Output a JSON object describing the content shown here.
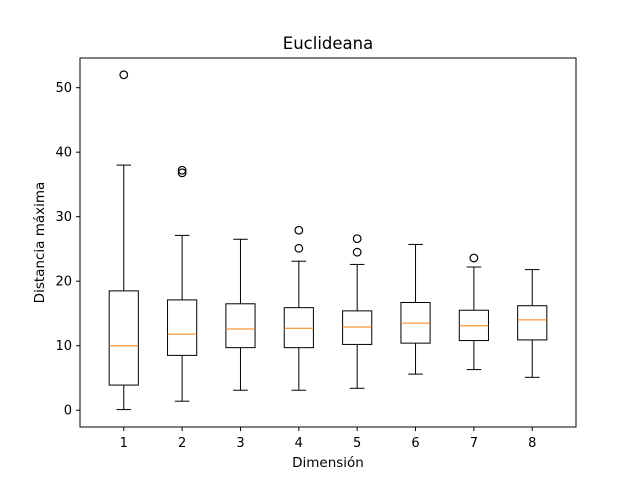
{
  "chart_data": {
    "type": "box",
    "title": "Euclideana",
    "xlabel": "Dimensión",
    "ylabel": "Distancia máxima",
    "categories": [
      "1",
      "2",
      "3",
      "4",
      "5",
      "6",
      "7",
      "8"
    ],
    "ylim": [
      -2.6,
      54.6
    ],
    "yticks": [
      0,
      10,
      20,
      30,
      40,
      50
    ],
    "grid": false,
    "colors": {
      "median": "#ff7f0e",
      "box": "#000000"
    },
    "boxes": [
      {
        "whislo": 0.1,
        "q1": 3.9,
        "med": 10.0,
        "q3": 18.5,
        "whishi": 38.0,
        "fliers": [
          52.0
        ]
      },
      {
        "whislo": 1.4,
        "q1": 8.5,
        "med": 11.8,
        "q3": 17.1,
        "whishi": 27.1,
        "fliers": [
          36.8,
          37.2
        ]
      },
      {
        "whislo": 3.1,
        "q1": 9.7,
        "med": 12.6,
        "q3": 16.5,
        "whishi": 26.5,
        "fliers": []
      },
      {
        "whislo": 3.1,
        "q1": 9.7,
        "med": 12.7,
        "q3": 15.9,
        "whishi": 23.1,
        "fliers": [
          25.1,
          27.9
        ]
      },
      {
        "whislo": 3.4,
        "q1": 10.2,
        "med": 12.9,
        "q3": 15.4,
        "whishi": 22.6,
        "fliers": [
          24.5,
          26.6
        ]
      },
      {
        "whislo": 5.6,
        "q1": 10.4,
        "med": 13.5,
        "q3": 16.7,
        "whishi": 25.7,
        "fliers": []
      },
      {
        "whislo": 6.3,
        "q1": 10.8,
        "med": 13.1,
        "q3": 15.5,
        "whishi": 22.2,
        "fliers": [
          23.6
        ]
      },
      {
        "whislo": 5.1,
        "q1": 10.9,
        "med": 14.0,
        "q3": 16.2,
        "whishi": 21.8,
        "fliers": []
      }
    ]
  }
}
